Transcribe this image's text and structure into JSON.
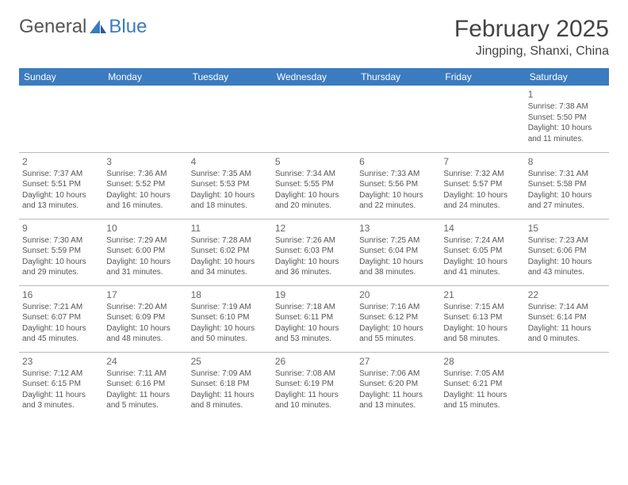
{
  "brand": {
    "part1": "General",
    "part2": "Blue"
  },
  "title": "February 2025",
  "location": "Jingping, Shanxi, China",
  "colors": {
    "header_bg": "#3b7bbf",
    "header_text": "#ffffff",
    "body_text": "#555555",
    "rule": "#b8b8b8",
    "brand_gray": "#555555",
    "brand_blue": "#3b7bbf"
  },
  "day_headers": [
    "Sunday",
    "Monday",
    "Tuesday",
    "Wednesday",
    "Thursday",
    "Friday",
    "Saturday"
  ],
  "weeks": [
    [
      null,
      null,
      null,
      null,
      null,
      null,
      {
        "n": "1",
        "sr": "7:38 AM",
        "ss": "5:50 PM",
        "dl": "10 hours and 11 minutes."
      }
    ],
    [
      {
        "n": "2",
        "sr": "7:37 AM",
        "ss": "5:51 PM",
        "dl": "10 hours and 13 minutes."
      },
      {
        "n": "3",
        "sr": "7:36 AM",
        "ss": "5:52 PM",
        "dl": "10 hours and 16 minutes."
      },
      {
        "n": "4",
        "sr": "7:35 AM",
        "ss": "5:53 PM",
        "dl": "10 hours and 18 minutes."
      },
      {
        "n": "5",
        "sr": "7:34 AM",
        "ss": "5:55 PM",
        "dl": "10 hours and 20 minutes."
      },
      {
        "n": "6",
        "sr": "7:33 AM",
        "ss": "5:56 PM",
        "dl": "10 hours and 22 minutes."
      },
      {
        "n": "7",
        "sr": "7:32 AM",
        "ss": "5:57 PM",
        "dl": "10 hours and 24 minutes."
      },
      {
        "n": "8",
        "sr": "7:31 AM",
        "ss": "5:58 PM",
        "dl": "10 hours and 27 minutes."
      }
    ],
    [
      {
        "n": "9",
        "sr": "7:30 AM",
        "ss": "5:59 PM",
        "dl": "10 hours and 29 minutes."
      },
      {
        "n": "10",
        "sr": "7:29 AM",
        "ss": "6:00 PM",
        "dl": "10 hours and 31 minutes."
      },
      {
        "n": "11",
        "sr": "7:28 AM",
        "ss": "6:02 PM",
        "dl": "10 hours and 34 minutes."
      },
      {
        "n": "12",
        "sr": "7:26 AM",
        "ss": "6:03 PM",
        "dl": "10 hours and 36 minutes."
      },
      {
        "n": "13",
        "sr": "7:25 AM",
        "ss": "6:04 PM",
        "dl": "10 hours and 38 minutes."
      },
      {
        "n": "14",
        "sr": "7:24 AM",
        "ss": "6:05 PM",
        "dl": "10 hours and 41 minutes."
      },
      {
        "n": "15",
        "sr": "7:23 AM",
        "ss": "6:06 PM",
        "dl": "10 hours and 43 minutes."
      }
    ],
    [
      {
        "n": "16",
        "sr": "7:21 AM",
        "ss": "6:07 PM",
        "dl": "10 hours and 45 minutes."
      },
      {
        "n": "17",
        "sr": "7:20 AM",
        "ss": "6:09 PM",
        "dl": "10 hours and 48 minutes."
      },
      {
        "n": "18",
        "sr": "7:19 AM",
        "ss": "6:10 PM",
        "dl": "10 hours and 50 minutes."
      },
      {
        "n": "19",
        "sr": "7:18 AM",
        "ss": "6:11 PM",
        "dl": "10 hours and 53 minutes."
      },
      {
        "n": "20",
        "sr": "7:16 AM",
        "ss": "6:12 PM",
        "dl": "10 hours and 55 minutes."
      },
      {
        "n": "21",
        "sr": "7:15 AM",
        "ss": "6:13 PM",
        "dl": "10 hours and 58 minutes."
      },
      {
        "n": "22",
        "sr": "7:14 AM",
        "ss": "6:14 PM",
        "dl": "11 hours and 0 minutes."
      }
    ],
    [
      {
        "n": "23",
        "sr": "7:12 AM",
        "ss": "6:15 PM",
        "dl": "11 hours and 3 minutes."
      },
      {
        "n": "24",
        "sr": "7:11 AM",
        "ss": "6:16 PM",
        "dl": "11 hours and 5 minutes."
      },
      {
        "n": "25",
        "sr": "7:09 AM",
        "ss": "6:18 PM",
        "dl": "11 hours and 8 minutes."
      },
      {
        "n": "26",
        "sr": "7:08 AM",
        "ss": "6:19 PM",
        "dl": "11 hours and 10 minutes."
      },
      {
        "n": "27",
        "sr": "7:06 AM",
        "ss": "6:20 PM",
        "dl": "11 hours and 13 minutes."
      },
      {
        "n": "28",
        "sr": "7:05 AM",
        "ss": "6:21 PM",
        "dl": "11 hours and 15 minutes."
      },
      null
    ]
  ],
  "labels": {
    "sunrise": "Sunrise: ",
    "sunset": "Sunset: ",
    "daylight": "Daylight: "
  }
}
